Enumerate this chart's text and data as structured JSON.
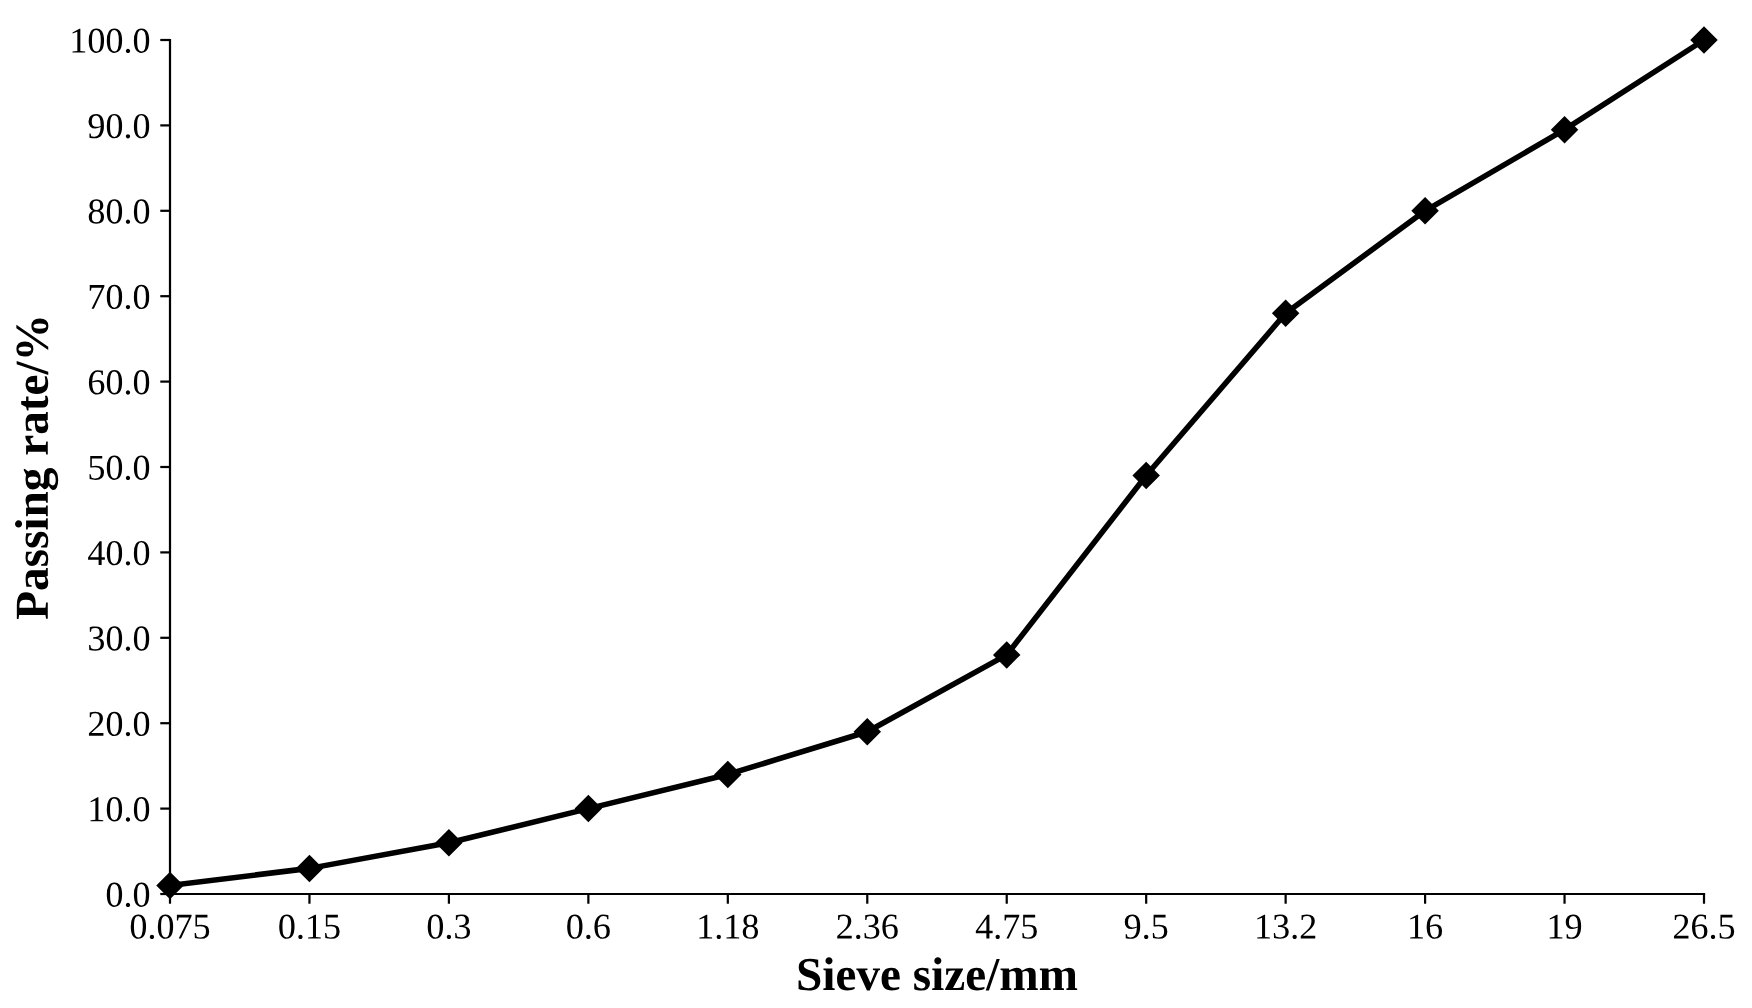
{
  "chart_data": {
    "type": "line",
    "xlabel": "Sieve size/mm",
    "ylabel": "Passing rate/%",
    "categories": [
      "0.075",
      "0.15",
      "0.3",
      "0.6",
      "1.18",
      "2.36",
      "4.75",
      "9.5",
      "13.2",
      "16",
      "19",
      "26.5"
    ],
    "series": [
      {
        "color": "#000000",
        "values": [
          1,
          3,
          6,
          10,
          14,
          19,
          28,
          49,
          68,
          80,
          89.5,
          100
        ]
      }
    ],
    "ylim": [
      0,
      100
    ],
    "yticks": [
      {
        "value": 0,
        "label": "0.0"
      },
      {
        "value": 10,
        "label": "10.0"
      },
      {
        "value": 20,
        "label": "20.0"
      },
      {
        "value": 30,
        "label": "30.0"
      },
      {
        "value": 40,
        "label": "40.0"
      },
      {
        "value": 50,
        "label": "50.0"
      },
      {
        "value": 60,
        "label": "60.0"
      },
      {
        "value": 70,
        "label": "70.0"
      },
      {
        "value": 80,
        "label": "80.0"
      },
      {
        "value": 90,
        "label": "90.0"
      },
      {
        "value": 100,
        "label": "100.0"
      }
    ],
    "grid": false,
    "legend": false,
    "marker": "diamond",
    "line_style": "solid"
  }
}
